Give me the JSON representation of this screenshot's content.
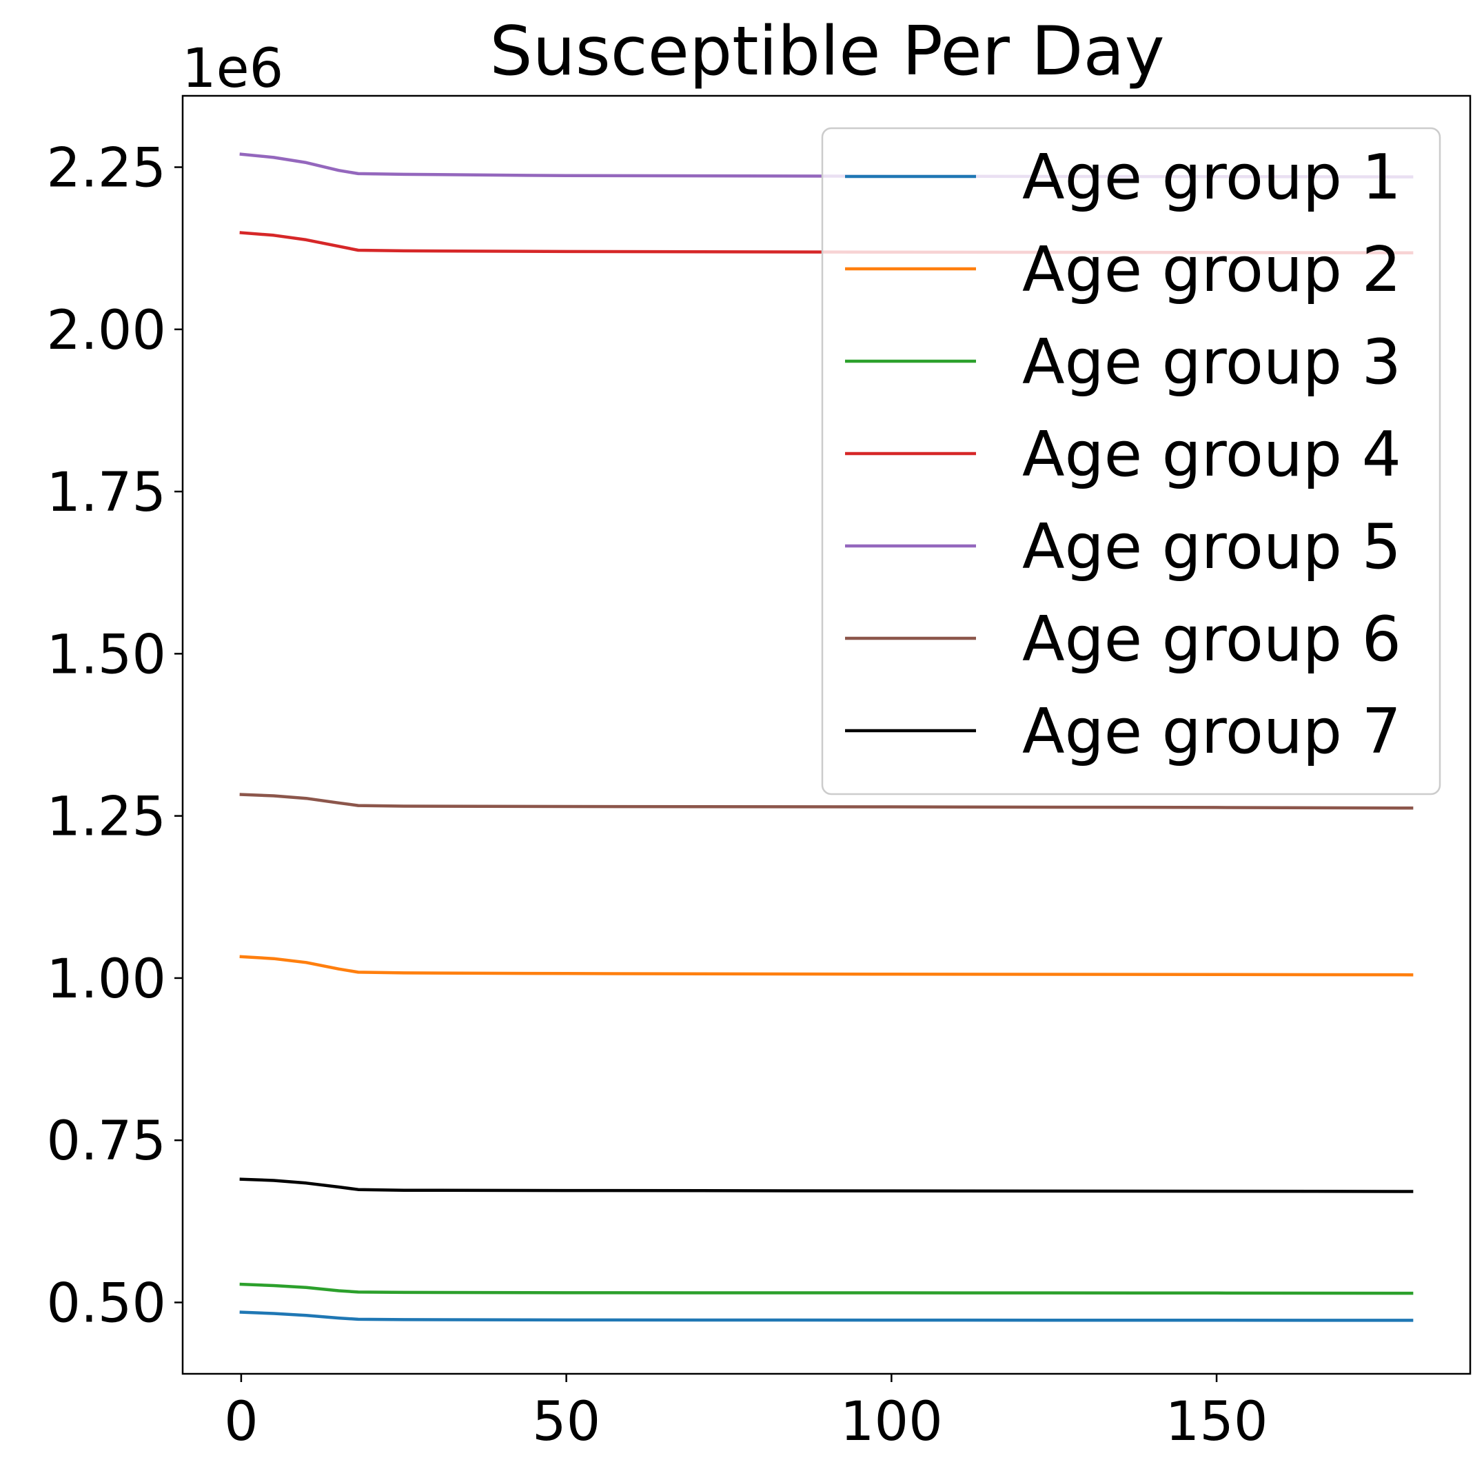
{
  "chart_data": {
    "type": "line",
    "title": "Susceptible Per Day",
    "xlabel": "",
    "ylabel": "",
    "y_offset_label": "1e6",
    "xlim": [
      -9,
      189
    ],
    "ylim": [
      390000,
      2360000
    ],
    "xticks": [
      0,
      50,
      100,
      150
    ],
    "xtick_labels": [
      "0",
      "50",
      "100",
      "150"
    ],
    "yticks": [
      500000,
      750000,
      1000000,
      1250000,
      1500000,
      1750000,
      2000000,
      2250000
    ],
    "ytick_labels": [
      "0.50",
      "0.75",
      "1.00",
      "1.25",
      "1.50",
      "1.75",
      "2.00",
      "2.25"
    ],
    "grid": false,
    "legend_position": "top-right",
    "x": [
      0,
      5,
      10,
      15,
      18,
      25,
      50,
      100,
      150,
      180
    ],
    "series": [
      {
        "name": "Age group 1",
        "color": "#1f77b4",
        "values": [
          485000,
          483000,
          480000,
          476000,
          474000,
          473500,
          473000,
          472800,
          472600,
          472500
        ]
      },
      {
        "name": "Age group 2",
        "color": "#ff7f0e",
        "values": [
          1033000,
          1030000,
          1024000,
          1014000,
          1009000,
          1008000,
          1007000,
          1006000,
          1005500,
          1005000
        ]
      },
      {
        "name": "Age group 3",
        "color": "#2ca02c",
        "values": [
          528000,
          526000,
          523000,
          518000,
          516000,
          515500,
          515000,
          514800,
          514500,
          514200
        ]
      },
      {
        "name": "Age group 4",
        "color": "#d62728",
        "values": [
          2149000,
          2145000,
          2138000,
          2128000,
          2122000,
          2121000,
          2120000,
          2119000,
          2118500,
          2118000
        ]
      },
      {
        "name": "Age group 5",
        "color": "#9467bd",
        "values": [
          2270000,
          2265000,
          2257000,
          2245000,
          2240000,
          2239000,
          2237000,
          2236000,
          2235500,
          2235000
        ]
      },
      {
        "name": "Age group 6",
        "color": "#8c564b",
        "values": [
          1283000,
          1281000,
          1277000,
          1270000,
          1266000,
          1265000,
          1264500,
          1264000,
          1263000,
          1262000
        ]
      },
      {
        "name": "Age group 7",
        "color": "#000000",
        "values": [
          690000,
          688000,
          684000,
          678000,
          674000,
          673000,
          672500,
          672000,
          671500,
          671000
        ]
      }
    ]
  }
}
